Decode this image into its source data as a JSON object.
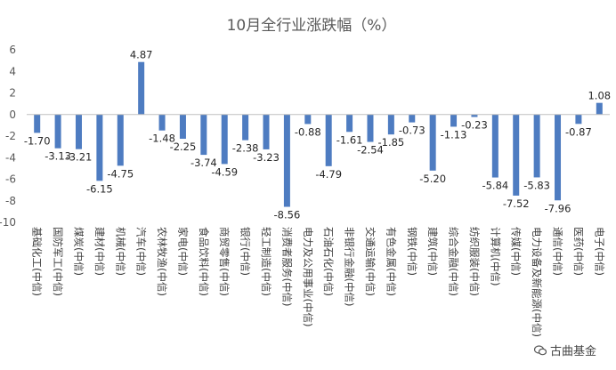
{
  "chart_data": {
    "type": "bar",
    "title": "10月全行业涨跌幅（%）",
    "ylim": [
      -10,
      6
    ],
    "yticks": [
      -10,
      -8,
      -6,
      -4,
      -2,
      0,
      2,
      4,
      6
    ],
    "grid": false,
    "legend": "none",
    "bar_color": "#4e7cc1",
    "categories": [
      "基础化工(中信)",
      "国防军工(中信)",
      "煤炭(中信)",
      "建材(中信)",
      "机械(中信)",
      "汽车(中信)",
      "农林牧渔(中信)",
      "家电(中信)",
      "食品饮料(中信)",
      "商贸零售(中信)",
      "银行(中信)",
      "轻工制造(中信)",
      "消费者服务(中信)",
      "电力及公用事业(中信)",
      "石油石化(中信)",
      "非银行金融(中信)",
      "交通运输(中信)",
      "有色金属(中信)",
      "钢铁(中信)",
      "建筑(中信)",
      "综合金融(中信)",
      "纺织服装(中信)",
      "计算机(中信)",
      "传媒(中信)",
      "电力设备及新能源(中信)",
      "通信(中信)",
      "医药(中信)",
      "电子(中信)"
    ],
    "values": [
      -1.7,
      -3.13,
      -3.21,
      -6.15,
      -4.75,
      4.87,
      -1.48,
      -2.25,
      -3.74,
      -4.59,
      -2.38,
      -3.23,
      -8.56,
      -0.88,
      -4.79,
      -1.61,
      -2.54,
      -1.85,
      -0.73,
      -5.2,
      -1.13,
      -0.23,
      -5.84,
      -7.52,
      -5.83,
      -7.96,
      -0.87,
      1.08
    ],
    "labels": [
      "-1.70",
      "-3.13",
      "-3.21",
      "-6.15",
      "-4.75",
      "4.87",
      "-1.48",
      "-2.25",
      "-3.74",
      "-4.59",
      "-2.38",
      "-3.23",
      "-8.56",
      "-0.88",
      "-4.79",
      "-1.61",
      "-2.54",
      "-1.85",
      "-0.73",
      "-5.20",
      "-1.13",
      "-0.23",
      "-5.84",
      "-7.52",
      "-5.83",
      "-7.96",
      "-0.87",
      "1.08"
    ]
  },
  "watermark": {
    "text": "古曲基金",
    "icon": "wechat-icon"
  }
}
